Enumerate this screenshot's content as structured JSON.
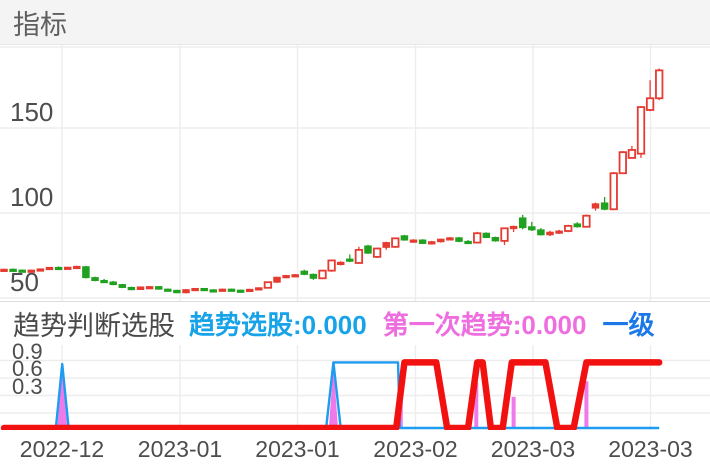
{
  "header": {
    "title": "指标"
  },
  "sub_header": {
    "title": "趋势判断选股",
    "legend": [
      {
        "label": "趋势选股:0.000",
        "color": "#17a3e8"
      },
      {
        "label": "第一次趋势:0.000",
        "color": "#ee6ee0"
      },
      {
        "label": "一级",
        "color": "#1b78e8"
      }
    ]
  },
  "colors": {
    "up": "#e53b31",
    "down": "#21a121",
    "trend_red": "#f21111",
    "signal_blue": "#1e9cf0",
    "spike_pink": "#ee79e8",
    "grid": "#ededee",
    "header_bg": "#f4f4f5"
  },
  "chart_data": [
    {
      "type": "candlestick",
      "title": "指标",
      "ylabel": "price",
      "y_ticks": [
        150,
        100,
        50
      ],
      "ylim": [
        48,
        198
      ],
      "grid": true,
      "x_tick_labels": [
        "2022-12",
        "2023-01",
        "2023-01",
        "2023-02",
        "2023-03",
        "2023-03"
      ],
      "candles_ohlc": [
        [
          66.3,
          67.2,
          65.8,
          66.9
        ],
        [
          66.9,
          67.4,
          66.0,
          66.4
        ],
        [
          66.4,
          66.8,
          65.2,
          65.5
        ],
        [
          65.5,
          66.6,
          65.1,
          66.4
        ],
        [
          66.4,
          67.3,
          66.0,
          67.1
        ],
        [
          67.1,
          68.2,
          66.8,
          68.0
        ],
        [
          68.0,
          68.6,
          67.2,
          67.5
        ],
        [
          67.5,
          68.3,
          66.9,
          68.1
        ],
        [
          68.1,
          69.0,
          67.4,
          68.6
        ],
        [
          68.4,
          68.9,
          61.5,
          62.0
        ],
        [
          62.0,
          62.6,
          59.8,
          60.3
        ],
        [
          60.3,
          61.2,
          59.0,
          59.4
        ],
        [
          59.4,
          60.0,
          57.5,
          57.9
        ],
        [
          57.9,
          58.3,
          55.8,
          56.2
        ],
        [
          56.2,
          56.7,
          54.6,
          55.0
        ],
        [
          55.0,
          56.8,
          54.7,
          56.5
        ],
        [
          56.5,
          57.0,
          55.4,
          56.7
        ],
        [
          56.7,
          57.0,
          54.9,
          55.2
        ],
        [
          55.2,
          55.6,
          54.2,
          54.5
        ],
        [
          54.5,
          54.8,
          52.8,
          53.1
        ],
        [
          53.1,
          55.3,
          52.7,
          54.9
        ],
        [
          54.9,
          55.9,
          54.4,
          55.6
        ],
        [
          55.6,
          55.9,
          54.5,
          54.8
        ],
        [
          54.8,
          55.2,
          53.9,
          54.2
        ],
        [
          54.2,
          55.5,
          54.0,
          55.2
        ],
        [
          55.2,
          55.6,
          54.3,
          54.6
        ],
        [
          54.6,
          55.0,
          53.8,
          54.1
        ],
        [
          54.1,
          55.4,
          53.9,
          55.1
        ],
        [
          55.1,
          56.3,
          54.8,
          56.0
        ],
        [
          56.0,
          59.6,
          55.7,
          59.3
        ],
        [
          59.3,
          62.5,
          58.9,
          62.2
        ],
        [
          62.2,
          63.6,
          61.6,
          63.2
        ],
        [
          63.2,
          64.1,
          62.4,
          63.7
        ],
        [
          65.8,
          66.6,
          63.4,
          63.9
        ],
        [
          63.9,
          64.4,
          60.7,
          61.6
        ],
        [
          61.6,
          66.6,
          61.1,
          66.1
        ],
        [
          66.1,
          72.6,
          65.4,
          72.1
        ],
        [
          70.2,
          71.6,
          69.1,
          71.0
        ],
        [
          72.9,
          75.6,
          71.1,
          72.4
        ],
        [
          70.6,
          80.1,
          70.1,
          78.3
        ],
        [
          80.6,
          81.3,
          75.9,
          76.4
        ],
        [
          74.2,
          79.6,
          73.6,
          79.1
        ],
        [
          79.8,
          83.1,
          78.4,
          82.6
        ],
        [
          80.1,
          85.6,
          79.5,
          85.1
        ],
        [
          86.6,
          87.1,
          83.7,
          84.1
        ],
        [
          83.1,
          84.6,
          82.4,
          84.1
        ],
        [
          84.1,
          84.6,
          81.7,
          82.1
        ],
        [
          82.1,
          83.6,
          81.4,
          83.1
        ],
        [
          83.1,
          84.9,
          82.6,
          84.6
        ],
        [
          84.6,
          85.9,
          83.9,
          85.4
        ],
        [
          85.4,
          85.9,
          82.8,
          83.3
        ],
        [
          83.3,
          84.1,
          82.1,
          82.6
        ],
        [
          82.6,
          88.9,
          82.3,
          88.1
        ],
        [
          88.1,
          88.6,
          85.2,
          85.6
        ],
        [
          85.6,
          86.1,
          83.1,
          83.6
        ],
        [
          83.6,
          91.3,
          81.2,
          91.0
        ],
        [
          91.0,
          92.6,
          88.8,
          92.1
        ],
        [
          97.1,
          98.9,
          90.4,
          91.4
        ],
        [
          91.9,
          94.8,
          89.4,
          90.1
        ],
        [
          90.1,
          91.1,
          86.7,
          87.2
        ],
        [
          87.2,
          89.6,
          86.4,
          88.7
        ],
        [
          88.7,
          90.1,
          87.7,
          89.4
        ],
        [
          89.4,
          93.1,
          88.7,
          92.4
        ],
        [
          93.6,
          94.6,
          91.4,
          91.9
        ],
        [
          91.9,
          99.1,
          91.6,
          98.4
        ],
        [
          102.9,
          106.1,
          101.4,
          105.4
        ],
        [
          105.9,
          109.4,
          101.6,
          102.2
        ],
        [
          102.2,
          124.1,
          101.7,
          123.4
        ],
        [
          123.4,
          136.4,
          122.9,
          135.8
        ],
        [
          132.4,
          139.4,
          131.9,
          137.1
        ],
        [
          134.9,
          162.9,
          132.4,
          162.3
        ],
        [
          160.6,
          178.1,
          159.9,
          167.5
        ],
        [
          167.5,
          185.0,
          166.4,
          183.9
        ]
      ]
    },
    {
      "type": "line",
      "title": "趋势判断选股",
      "y_ticks": [
        0.9,
        0.6,
        0.3
      ],
      "ylim": [
        0,
        1.0
      ],
      "grid": true,
      "series": [
        {
          "name": "趋势选股",
          "color": "#1e9cf0",
          "segments": [
            [
              [
                0,
                0
              ],
              [
                5.7,
                0
              ],
              [
                6.4,
                0.78
              ],
              [
                7.1,
                0
              ],
              [
                35.4,
                0
              ],
              [
                36.2,
                0.8
              ],
              [
                43.3,
                0.8
              ],
              [
                43.5,
                0
              ],
              [
                72,
                0
              ]
            ],
            [
              [
                36.2,
                0.8
              ],
              [
                37.0,
                0
              ]
            ]
          ]
        },
        {
          "name": "第一次趋势",
          "color": "#ee79e8",
          "spikes": [
            {
              "i": 6.4,
              "h": 0.74,
              "shape": "triangle",
              "half_width": 0.55
            },
            {
              "i": 36.2,
              "h": 0.78,
              "shape": "triangle",
              "half_width": 0.5
            },
            {
              "i": 43.6,
              "h": 0.5,
              "shape": "bar"
            },
            {
              "i": 51.9,
              "h": 0.55,
              "shape": "bar"
            },
            {
              "i": 56.0,
              "h": 0.38,
              "shape": "bar"
            },
            {
              "i": 64.0,
              "h": 0.57,
              "shape": "bar"
            }
          ]
        },
        {
          "name": "一级",
          "color": "#f21111",
          "points": [
            [
              0,
              0
            ],
            [
              43.1,
              0
            ],
            [
              44.0,
              0.8
            ],
            [
              47.5,
              0.8
            ],
            [
              48.7,
              0
            ],
            [
              51.0,
              0
            ],
            [
              52.0,
              0.8
            ],
            [
              52.6,
              0.8
            ],
            [
              53.5,
              0
            ],
            [
              54.8,
              0
            ],
            [
              55.8,
              0.8
            ],
            [
              59.5,
              0.8
            ],
            [
              60.8,
              0
            ],
            [
              62.6,
              0
            ],
            [
              64.0,
              0.8
            ],
            [
              72,
              0.8
            ]
          ]
        }
      ]
    }
  ]
}
